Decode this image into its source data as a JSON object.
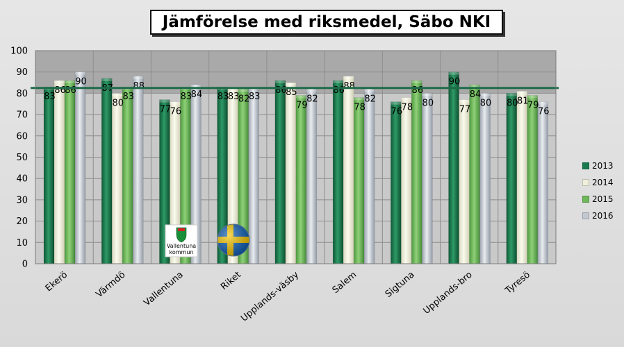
{
  "chart_data": {
    "type": "bar",
    "title": "Jämförelse med riksmedel, Säbo NKI",
    "categories": [
      "Ekerö",
      "Värmdö",
      "Vallentuna",
      "Riket",
      "Upplands-väsby",
      "Salem",
      "Sigtuna",
      "Upplands-bro",
      "Tyresö"
    ],
    "series": [
      {
        "name": "2013",
        "values": [
          83,
          87,
          77,
          83,
          86,
          86,
          76,
          90,
          80
        ],
        "color": "#1a7a4e"
      },
      {
        "name": "2014",
        "values": [
          86,
          80,
          76,
          83,
          85,
          88,
          78,
          77,
          81
        ],
        "color": "#efefdc"
      },
      {
        "name": "2015",
        "values": [
          86,
          83,
          83,
          82,
          79,
          78,
          86,
          84,
          79
        ],
        "color": "#6fb85a"
      },
      {
        "name": "2016",
        "values": [
          90,
          88,
          84,
          83,
          82,
          82,
          80,
          80,
          76
        ],
        "color": "#c2c8d0"
      }
    ],
    "ylim": [
      0,
      100
    ],
    "yticks": [
      0,
      10,
      20,
      30,
      40,
      50,
      60,
      70,
      80,
      90,
      100
    ],
    "reference_line": {
      "value": 82.5,
      "color": "#1e6b4a"
    },
    "legend_position": "right",
    "grid": true,
    "logo_text": [
      "Vallentuna",
      "kommun"
    ]
  }
}
